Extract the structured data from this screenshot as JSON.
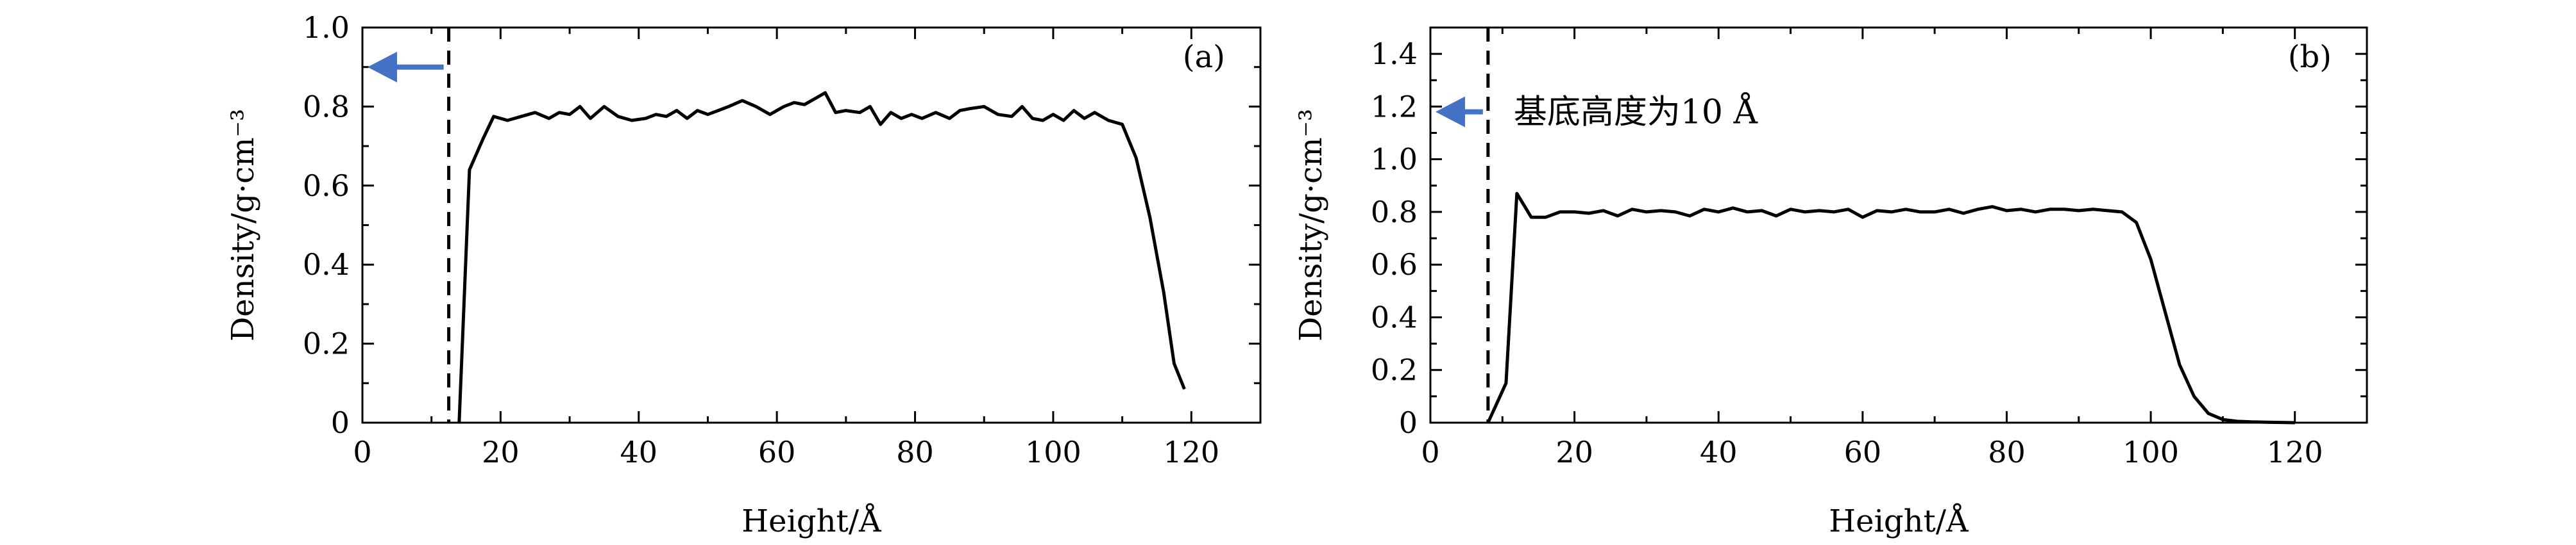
{
  "chart_data": [
    {
      "type": "line",
      "panel_label": "(a)",
      "xlabel": "Height/Å",
      "ylabel": "Density/g·cm⁻³",
      "xlim": [
        0,
        130
      ],
      "ylim": [
        0,
        1.0
      ],
      "xticks": [
        0,
        20,
        40,
        60,
        80,
        100,
        120
      ],
      "yticks": [
        0,
        0.2,
        0.4,
        0.6,
        0.8,
        1.0
      ],
      "xtick_labels": [
        "0",
        "20",
        "40",
        "60",
        "80",
        "100",
        "120"
      ],
      "ytick_labels": [
        "0",
        "0.2",
        "0.4",
        "0.6",
        "0.8",
        "1.0"
      ],
      "grid": false,
      "series": [
        {
          "color": "#000000",
          "x": [
            14,
            15.5,
            17.5,
            19,
            21,
            23,
            25,
            27,
            28.5,
            30,
            31.5,
            33,
            35,
            37,
            39,
            41,
            42.5,
            44,
            45.5,
            47,
            48.5,
            50,
            51.5,
            53,
            55,
            57,
            59,
            61,
            62.5,
            64,
            65.5,
            67,
            68.5,
            70,
            72,
            73.5,
            75,
            76.5,
            78,
            79.5,
            81,
            83,
            85,
            86.5,
            88,
            90,
            92,
            94,
            95.5,
            97,
            98.5,
            100,
            101.5,
            103,
            104.5,
            106,
            108,
            110,
            112,
            114,
            116,
            117.5,
            119
          ],
          "y": [
            0.0,
            0.64,
            0.72,
            0.775,
            0.765,
            0.775,
            0.785,
            0.77,
            0.785,
            0.78,
            0.8,
            0.77,
            0.8,
            0.775,
            0.765,
            0.77,
            0.78,
            0.775,
            0.79,
            0.77,
            0.79,
            0.78,
            0.79,
            0.8,
            0.815,
            0.8,
            0.78,
            0.8,
            0.81,
            0.805,
            0.82,
            0.835,
            0.785,
            0.79,
            0.785,
            0.8,
            0.755,
            0.785,
            0.77,
            0.78,
            0.77,
            0.785,
            0.77,
            0.79,
            0.795,
            0.8,
            0.78,
            0.775,
            0.8,
            0.77,
            0.765,
            0.78,
            0.765,
            0.79,
            0.77,
            0.785,
            0.765,
            0.755,
            0.67,
            0.52,
            0.33,
            0.15,
            0.085
          ]
        }
      ],
      "substrate_line_x": 12.5,
      "arrow_y": 0.9
    },
    {
      "type": "line",
      "panel_label": "(b)",
      "annotation": "基底高度为10 Å",
      "xlabel": "Height/Å",
      "ylabel": "Density/g·cm⁻³",
      "xlim": [
        0,
        130
      ],
      "ylim": [
        0,
        1.5
      ],
      "xticks": [
        0,
        20,
        40,
        60,
        80,
        100,
        120
      ],
      "yticks": [
        0,
        0.2,
        0.4,
        0.6,
        0.8,
        1.0,
        1.2,
        1.4
      ],
      "xtick_labels": [
        "0",
        "20",
        "40",
        "60",
        "80",
        "100",
        "120"
      ],
      "ytick_labels": [
        "0",
        "0.2",
        "0.4",
        "0.6",
        "0.8",
        "1.0",
        "1.2",
        "1.4"
      ],
      "grid": false,
      "series": [
        {
          "color": "#000000",
          "x": [
            8,
            9,
            10.5,
            12,
            14,
            16,
            18,
            20,
            22,
            24,
            26,
            28,
            30,
            32,
            34,
            36,
            38,
            40,
            42,
            44,
            46,
            48,
            50,
            52,
            54,
            56,
            58,
            60,
            62,
            64,
            66,
            68,
            70,
            72,
            74,
            76,
            78,
            80,
            82,
            84,
            86,
            88,
            90,
            92,
            94,
            96,
            98,
            100,
            102,
            104,
            106,
            108,
            110,
            112,
            114,
            116,
            118,
            120
          ],
          "y": [
            0.0,
            0.06,
            0.15,
            0.87,
            0.78,
            0.78,
            0.8,
            0.8,
            0.795,
            0.805,
            0.785,
            0.81,
            0.8,
            0.805,
            0.8,
            0.785,
            0.81,
            0.8,
            0.815,
            0.8,
            0.805,
            0.785,
            0.81,
            0.8,
            0.805,
            0.8,
            0.81,
            0.78,
            0.805,
            0.8,
            0.81,
            0.8,
            0.8,
            0.81,
            0.795,
            0.81,
            0.82,
            0.805,
            0.81,
            0.8,
            0.81,
            0.81,
            0.805,
            0.81,
            0.805,
            0.8,
            0.76,
            0.62,
            0.42,
            0.22,
            0.1,
            0.035,
            0.012,
            0.005,
            0.003,
            0.002,
            0.001,
            0.0
          ]
        }
      ],
      "substrate_line_x": 8,
      "arrow_y": 1.18
    }
  ],
  "colors": {
    "arrow": "#4472C4",
    "line": "#000000"
  }
}
